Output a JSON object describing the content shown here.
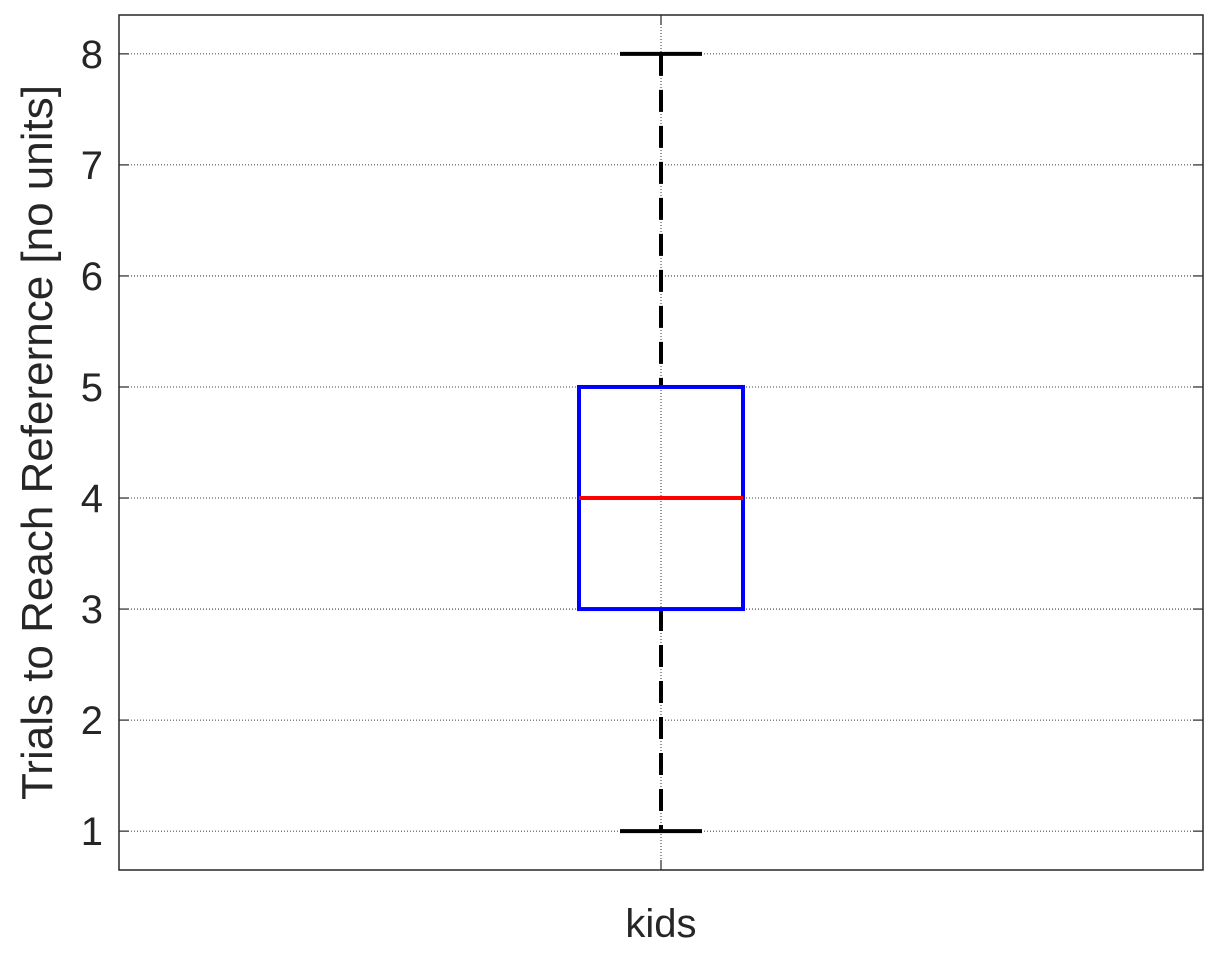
{
  "chart_data": {
    "type": "box",
    "title": "",
    "xlabel": "",
    "ylabel": "Trials to Reach Referernce [no units]",
    "ylim": [
      0.65,
      8.35
    ],
    "yticks": [
      1,
      2,
      3,
      4,
      5,
      6,
      7,
      8
    ],
    "ytick_labels": [
      "1",
      "2",
      "3",
      "4",
      "5",
      "6",
      "7",
      "8"
    ],
    "categories": [
      "kids"
    ],
    "boxes": [
      {
        "category": "kids",
        "whisker_low": 1,
        "q1": 3,
        "median": 4,
        "q3": 5,
        "whisker_high": 8
      }
    ],
    "grid": true,
    "colors": {
      "box": "#0000ff",
      "median": "#ff0000",
      "whisker": "#000000",
      "grid": "#000000",
      "text": "#262626"
    }
  }
}
